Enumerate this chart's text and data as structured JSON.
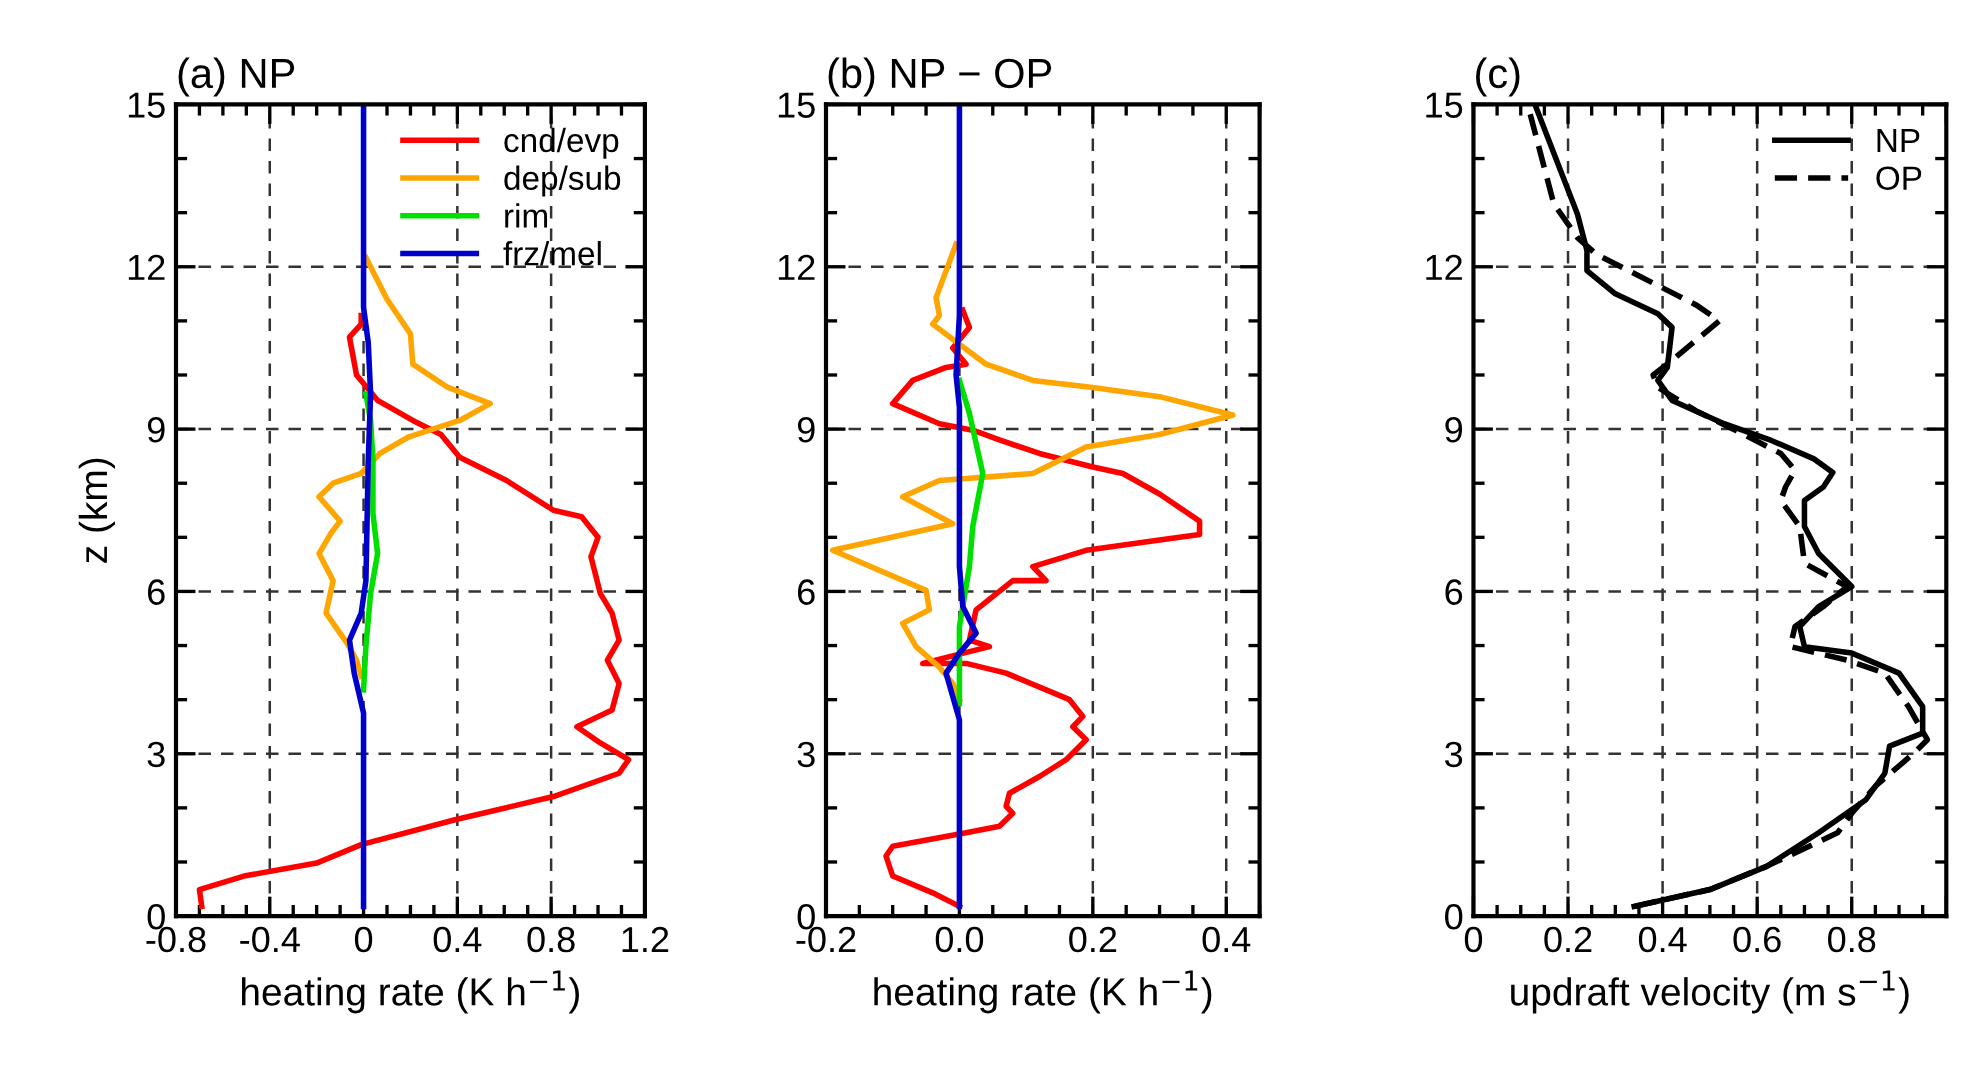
{
  "chart_data": [
    {
      "type": "line",
      "title": "(a) NP",
      "xlabel": "heating rate (K h$^{−1}$)",
      "ylabel": "z (km)",
      "xlim": [
        -0.8,
        1.2
      ],
      "xticks": [
        -0.8,
        -0.4,
        0,
        0.4,
        0.8,
        1.2
      ],
      "ylim": [
        0,
        15
      ],
      "yticks": [
        0,
        3,
        6,
        9,
        12,
        15
      ],
      "grid": true,
      "legend": "top right",
      "line_style": "solid",
      "series": [
        {
          "name": "cnd/evp",
          "color": "#ff0000",
          "x": [
            -0.69,
            -0.7,
            -0.51,
            -0.2,
            -0.01,
            0.39,
            0.81,
            1.09,
            1.13,
            1.01,
            0.91,
            1.06,
            1.09,
            1.04,
            1.09,
            1.06,
            1.01,
            0.97,
            1.0,
            0.93,
            0.81,
            0.61,
            0.41,
            0.33,
            0.21,
            0.06,
            -0.03,
            -0.06,
            -0.01,
            -0.01
          ],
          "values": [
            0.18,
            0.49,
            0.74,
            0.98,
            1.32,
            1.78,
            2.21,
            2.64,
            2.89,
            3.2,
            3.5,
            3.81,
            4.3,
            4.73,
            5.1,
            5.6,
            5.96,
            6.64,
            7.0,
            7.38,
            7.5,
            8.05,
            8.48,
            8.9,
            9.16,
            9.53,
            10.0,
            10.7,
            10.94,
            11.1
          ]
        },
        {
          "name": "dep/sub",
          "color": "#ffa500",
          "x": [
            -0.01,
            -0.03,
            -0.07,
            -0.16,
            -0.13,
            -0.19,
            -0.14,
            -0.1,
            -0.19,
            -0.13,
            -0.01,
            0.07,
            0.19,
            0.41,
            0.54,
            0.36,
            0.21,
            0.2,
            0.1,
            0.01
          ],
          "values": [
            4.43,
            4.73,
            5.04,
            5.6,
            6.2,
            6.7,
            7.07,
            7.3,
            7.75,
            8.0,
            8.18,
            8.55,
            8.85,
            9.16,
            9.47,
            9.77,
            10.2,
            10.76,
            11.4,
            12.17
          ]
        },
        {
          "name": "rim",
          "color": "#00e000",
          "x": [
            0,
            0.01,
            0.03,
            0.06,
            0.04,
            0.04,
            0.03,
            0.01
          ],
          "values": [
            4.18,
            4.98,
            5.96,
            6.7,
            7.44,
            8.42,
            9.16,
            9.65
          ]
        },
        {
          "name": "frz/mel",
          "color": "#0000cc",
          "x": [
            0,
            0,
            -0.04,
            -0.06,
            -0.01,
            0.01,
            0.02,
            0.03,
            0.02,
            0,
            0
          ],
          "values": [
            0.18,
            3.75,
            4.49,
            5.1,
            5.6,
            6.2,
            8.42,
            9.65,
            10.6,
            11.25,
            15
          ]
        }
      ]
    },
    {
      "type": "line",
      "title": "(b) NP − OP",
      "xlabel": "heating rate (K h$^{−1}$)",
      "xlim": [
        -0.2,
        0.45
      ],
      "xticks": [
        -0.2,
        {
          "value": 0,
          "label": "0.0"
        },
        0.2,
        0.4
      ],
      "ylim": [
        0,
        15
      ],
      "yticks": [
        0,
        3,
        6,
        9,
        12,
        15
      ],
      "grid": true,
      "line_style": "solid",
      "series": [
        {
          "color": "#ff0000",
          "x": [
            0,
            -0.04,
            -0.1,
            -0.11,
            -0.1,
            0.01,
            0.06,
            0.08,
            0.07,
            0.075,
            0.12,
            0.16,
            0.19,
            0.17,
            0.185,
            0.165,
            0.07,
            0.01,
            -0.055,
            0.045,
            0.015,
            0.025,
            0.08,
            0.13,
            0.11,
            0.19,
            0.3,
            0.36,
            0.36,
            0.3,
            0.245,
            0.2,
            0.12,
            0.06,
            0.02,
            -0.03,
            -0.1,
            -0.07,
            -0.02,
            0.01,
            -0.01,
            0.015,
            0.005
          ],
          "values": [
            0.18,
            0.43,
            0.74,
            1.11,
            1.29,
            1.54,
            1.66,
            1.9,
            2.03,
            2.27,
            2.58,
            2.89,
            3.26,
            3.5,
            3.69,
            4.0,
            4.49,
            4.67,
            4.67,
            4.98,
            5.1,
            5.66,
            6.2,
            6.2,
            6.46,
            6.76,
            6.95,
            7.05,
            7.3,
            7.8,
            8.18,
            8.3,
            8.55,
            8.8,
            8.98,
            9.1,
            9.47,
            9.9,
            10.14,
            10.2,
            10.5,
            10.88,
            11.2
          ]
        },
        {
          "color": "#ffa500",
          "x": [
            0,
            -0.01,
            -0.03,
            -0.065,
            -0.085,
            -0.045,
            -0.05,
            -0.19,
            -0.01,
            -0.085,
            -0.03,
            0.11,
            0.19,
            0.3,
            0.41,
            0.3,
            0.2,
            0.11,
            0.04,
            0,
            -0.04,
            -0.03,
            -0.035,
            -0.005
          ],
          "values": [
            4.0,
            4.3,
            4.6,
            4.98,
            5.41,
            5.66,
            6.02,
            6.76,
            7.25,
            7.75,
            8.05,
            8.18,
            8.67,
            8.9,
            9.26,
            9.6,
            9.77,
            9.9,
            10.2,
            10.57,
            10.94,
            11.1,
            11.43,
            12.42
          ]
        },
        {
          "color": "#00e000",
          "x": [
            0,
            0,
            0.015,
            0.02,
            0.035,
            0.015,
            0
          ],
          "values": [
            3.93,
            5.35,
            6.46,
            7.2,
            8.18,
            9.29,
            9.9
          ]
        },
        {
          "color": "#0000cc",
          "x": [
            0,
            0,
            -0.02,
            0,
            0.025,
            0.005,
            0,
            0,
            -0.005,
            0,
            0
          ],
          "values": [
            0.18,
            3.63,
            4.49,
            4.86,
            5.23,
            5.72,
            6.46,
            9.4,
            10.0,
            11.1,
            15
          ]
        }
      ]
    },
    {
      "type": "line",
      "title": "(c)",
      "xlabel": "updraft velocity (m s$^{−1}$)",
      "xlim": [
        0,
        1.0
      ],
      "xticks": [
        0,
        0.2,
        0.4,
        0.6,
        0.8,
        {
          "value": 1.0,
          "label": null
        }
      ],
      "ylim": [
        0,
        15
      ],
      "yticks": [
        0,
        3,
        6,
        9,
        12,
        15
      ],
      "grid": true,
      "legend": "top right",
      "series": [
        {
          "name": "NP",
          "color": "#000000",
          "line_style": "solid",
          "x": [
            0.34,
            0.5,
            0.62,
            0.73,
            0.83,
            0.87,
            0.88,
            0.95,
            0.95,
            0.9,
            0.8,
            0.7,
            0.69,
            0.73,
            0.8,
            0.73,
            0.7,
            0.7,
            0.74,
            0.76,
            0.72,
            0.63,
            0.53,
            0.42,
            0.39,
            0.41,
            0.42,
            0.39,
            0.3,
            0.24,
            0.24,
            0.22,
            0.13
          ],
          "values": [
            0.18,
            0.49,
            0.92,
            1.54,
            2.15,
            2.64,
            3.14,
            3.38,
            3.87,
            4.49,
            4.86,
            4.98,
            5.35,
            5.72,
            6.09,
            6.7,
            7.2,
            7.68,
            7.93,
            8.2,
            8.45,
            8.79,
            9.1,
            9.53,
            9.9,
            10.14,
            10.88,
            11.13,
            11.5,
            11.93,
            12.3,
            12.97,
            15
          ]
        },
        {
          "name": "OP",
          "color": "#000000",
          "line_style": "dashed",
          "x": [
            0.34,
            0.5,
            0.62,
            0.77,
            0.8,
            0.85,
            0.93,
            0.96,
            0.92,
            0.87,
            0.79,
            0.67,
            0.68,
            0.74,
            0.79,
            0.7,
            0.69,
            0.65,
            0.66,
            0.68,
            0.65,
            0.57,
            0.47,
            0.39,
            0.38,
            0.42,
            0.52,
            0.47,
            0.26,
            0.22,
            0.17,
            0.12
          ],
          "values": [
            0.18,
            0.49,
            0.92,
            1.54,
            1.9,
            2.4,
            3.0,
            3.26,
            3.87,
            4.49,
            4.73,
            4.98,
            5.35,
            5.72,
            6.09,
            6.52,
            7.2,
            7.68,
            7.93,
            8.24,
            8.55,
            8.91,
            9.34,
            9.77,
            10.0,
            10.27,
            11.0,
            11.3,
            12.23,
            12.54,
            13.16,
            14.82
          ]
        }
      ]
    }
  ]
}
